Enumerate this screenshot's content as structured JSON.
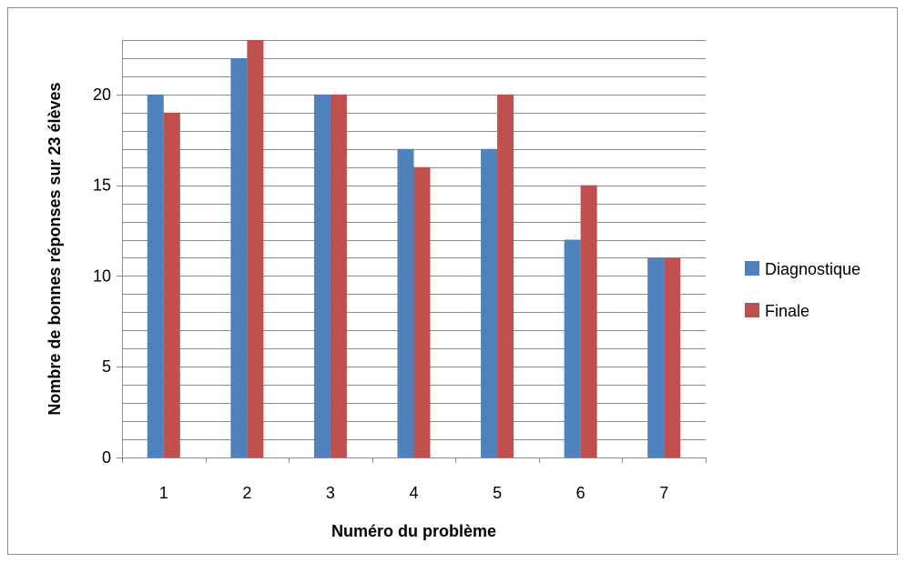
{
  "chart_data": {
    "type": "bar",
    "title": "",
    "xlabel": "Numéro du problème",
    "ylabel": "Nombre de bonnes réponses sur 23 élèves",
    "categories": [
      "1",
      "2",
      "3",
      "4",
      "5",
      "6",
      "7"
    ],
    "series": [
      {
        "name": "Diagnostique",
        "color": "#4f81bd",
        "values": [
          20,
          22,
          20,
          17,
          17,
          12,
          11
        ]
      },
      {
        "name": "Finale",
        "color": "#c0504d",
        "values": [
          19,
          23,
          20,
          16,
          20,
          15,
          11
        ]
      }
    ],
    "ylim": [
      0,
      23
    ],
    "yticks": [
      0,
      5,
      10,
      15,
      20
    ],
    "grid": true,
    "legend": "right"
  }
}
